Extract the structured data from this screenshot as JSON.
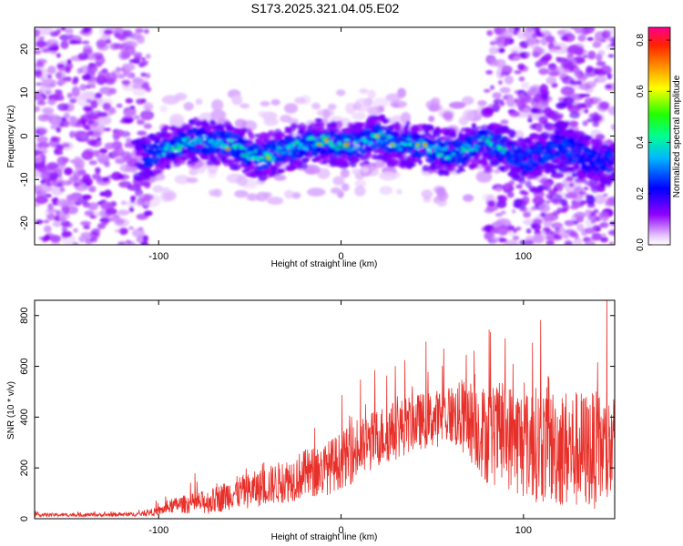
{
  "title": "S173.2025.321.04.05.E02",
  "chart_data": [
    {
      "type": "heatmap",
      "xlabel": "Height of straight line (km)",
      "ylabel": "Frequency (Hz)",
      "xlim": [
        -168,
        150
      ],
      "ylim": [
        -25,
        25
      ],
      "xticks": [
        -100,
        0,
        100
      ],
      "yticks": [
        -20,
        -10,
        0,
        10,
        20
      ],
      "signal_band": {
        "x": [
          -110,
          -90,
          -80,
          -60,
          -45,
          -30,
          -20,
          -10,
          0,
          10,
          20,
          30,
          40,
          50,
          60,
          70,
          80,
          90,
          100,
          110,
          120,
          130,
          140,
          150
        ],
        "center_freq": [
          -5,
          -2,
          -1,
          -2,
          -5,
          -3,
          -2,
          -1,
          -2,
          -2,
          0,
          -2,
          -2,
          -3,
          -4,
          -3,
          -1,
          -3,
          -6,
          -4,
          -2,
          -4,
          -6,
          -6
        ]
      },
      "noise_regions": [
        [
          -168,
          -105
        ],
        [
          80,
          150
        ]
      ],
      "colorbar": {
        "label": "Normalized spectral amplitude",
        "range": [
          0,
          0.85
        ],
        "ticks": [
          0.0,
          0.2,
          0.4,
          0.6,
          0.8
        ],
        "tick_labels": [
          "0.0",
          "0.2",
          "0.4",
          "0.6",
          "0.8"
        ]
      }
    },
    {
      "type": "line",
      "xlabel": "Height of straight line (km)",
      "ylabel": "SNR (10 * v/v)",
      "xlim": [
        -168,
        150
      ],
      "ylim": [
        0,
        860
      ],
      "xticks": [
        -100,
        0,
        100
      ],
      "yticks": [
        0,
        200,
        400,
        600,
        800
      ],
      "series": [
        {
          "name": "SNR",
          "color": "#e8302a",
          "x": [
            -168,
            -150,
            -130,
            -110,
            -100,
            -90,
            -80,
            -70,
            -60,
            -50,
            -40,
            -30,
            -20,
            -10,
            0,
            10,
            20,
            30,
            40,
            50,
            60,
            70,
            80,
            90,
            100,
            110,
            120,
            130,
            140,
            150
          ],
          "mean": [
            15,
            15,
            15,
            18,
            30,
            55,
            60,
            70,
            100,
            110,
            130,
            150,
            175,
            190,
            230,
            270,
            320,
            350,
            380,
            390,
            410,
            390,
            330,
            330,
            300,
            290,
            280,
            270,
            270,
            260
          ],
          "amp": [
            10,
            10,
            10,
            12,
            25,
            45,
            60,
            75,
            90,
            100,
            110,
            125,
            140,
            150,
            160,
            170,
            170,
            170,
            160,
            160,
            170,
            230,
            280,
            300,
            320,
            330,
            340,
            340,
            330,
            330
          ]
        }
      ]
    }
  ]
}
